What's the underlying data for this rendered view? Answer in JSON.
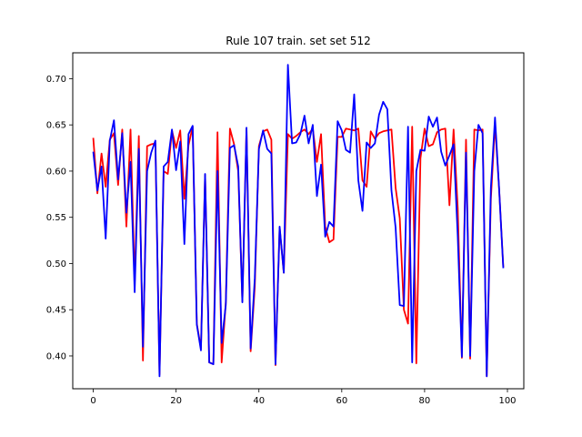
{
  "chart_data": {
    "type": "line",
    "title": "Rule 107 train. set set 512",
    "xlabel": "",
    "ylabel": "",
    "xlim": [
      -4.95,
      103.95
    ],
    "ylim": [
      0.3645,
      0.728
    ],
    "xticks": [
      0,
      20,
      40,
      60,
      80,
      100
    ],
    "yticks": [
      0.4,
      0.45,
      0.5,
      0.55,
      0.6,
      0.65,
      0.7
    ],
    "ytick_labels": [
      "0.40",
      "0.45",
      "0.50",
      "0.55",
      "0.60",
      "0.65",
      "0.70"
    ],
    "grid": false,
    "legend": "none",
    "x": [
      0,
      1,
      2,
      3,
      4,
      5,
      6,
      7,
      8,
      9,
      10,
      11,
      12,
      13,
      14,
      15,
      16,
      17,
      18,
      19,
      20,
      21,
      22,
      23,
      24,
      25,
      26,
      27,
      28,
      29,
      30,
      31,
      32,
      33,
      34,
      35,
      36,
      37,
      38,
      39,
      40,
      41,
      42,
      43,
      44,
      45,
      46,
      47,
      48,
      49,
      50,
      51,
      52,
      53,
      54,
      55,
      56,
      57,
      58,
      59,
      60,
      61,
      62,
      63,
      64,
      65,
      66,
      67,
      68,
      69,
      70,
      71,
      72,
      73,
      74,
      75,
      76,
      77,
      78,
      79,
      80,
      81,
      82,
      83,
      84,
      85,
      86,
      87,
      88,
      89,
      90,
      91,
      92,
      93,
      94,
      95,
      96,
      97,
      98,
      99
    ],
    "series": [
      {
        "color": "#ff0000",
        "values": [
          0.636,
          0.576,
          0.619,
          0.583,
          0.634,
          0.641,
          0.585,
          0.645,
          0.54,
          0.645,
          0.48,
          0.638,
          0.395,
          0.627,
          0.629,
          0.63,
          0.38,
          0.6,
          0.597,
          0.644,
          0.625,
          0.644,
          0.57,
          0.628,
          0.648,
          0.435,
          0.408,
          0.596,
          0.393,
          0.391,
          0.642,
          0.393,
          0.458,
          0.646,
          0.629,
          0.6,
          0.459,
          0.646,
          0.405,
          0.475,
          0.627,
          0.643,
          0.645,
          0.634,
          0.39,
          0.539,
          0.49,
          0.64,
          0.635,
          0.638,
          0.642,
          0.645,
          0.64,
          0.646,
          0.61,
          0.64,
          0.54,
          0.523,
          0.526,
          0.637,
          0.637,
          0.646,
          0.645,
          0.644,
          0.646,
          0.59,
          0.583,
          0.643,
          0.635,
          0.641,
          0.643,
          0.644,
          0.645,
          0.582,
          0.549,
          0.45,
          0.435,
          0.648,
          0.392,
          0.614,
          0.646,
          0.627,
          0.629,
          0.642,
          0.645,
          0.646,
          0.563,
          0.645,
          0.56,
          0.398,
          0.634,
          0.397,
          0.645,
          0.644,
          0.645,
          0.378,
          0.57,
          0.651,
          0.58,
          0.496
        ]
      },
      {
        "color": "#0000ff",
        "values": [
          0.621,
          0.579,
          0.605,
          0.527,
          0.633,
          0.655,
          0.591,
          0.641,
          0.555,
          0.61,
          0.469,
          0.624,
          0.41,
          0.6,
          0.62,
          0.633,
          0.378,
          0.605,
          0.61,
          0.645,
          0.601,
          0.632,
          0.521,
          0.64,
          0.649,
          0.434,
          0.406,
          0.597,
          0.393,
          0.391,
          0.6,
          0.414,
          0.455,
          0.625,
          0.628,
          0.605,
          0.458,
          0.647,
          0.408,
          0.484,
          0.624,
          0.644,
          0.624,
          0.619,
          0.391,
          0.54,
          0.49,
          0.715,
          0.63,
          0.631,
          0.64,
          0.66,
          0.63,
          0.65,
          0.573,
          0.607,
          0.529,
          0.545,
          0.54,
          0.654,
          0.644,
          0.623,
          0.62,
          0.683,
          0.59,
          0.557,
          0.631,
          0.625,
          0.63,
          0.661,
          0.675,
          0.667,
          0.579,
          0.539,
          0.455,
          0.454,
          0.648,
          0.393,
          0.6,
          0.623,
          0.622,
          0.659,
          0.648,
          0.658,
          0.621,
          0.606,
          0.617,
          0.629,
          0.53,
          0.399,
          0.62,
          0.4,
          0.6,
          0.65,
          0.641,
          0.378,
          0.582,
          0.658,
          0.58,
          0.495
        ]
      }
    ]
  }
}
